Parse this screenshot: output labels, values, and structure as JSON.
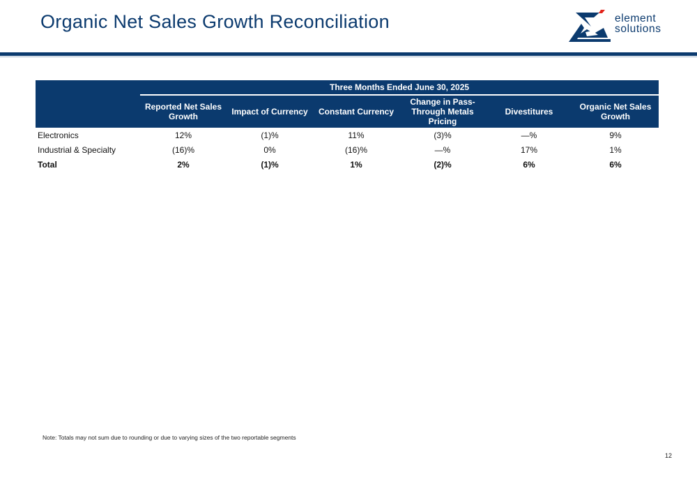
{
  "title": "Organic Net Sales Growth Reconciliation",
  "logo": {
    "line1": "element",
    "line2": "solutions"
  },
  "table": {
    "period": "Three Months Ended June 30, 2025",
    "headers": [
      "Reported Net Sales Growth",
      "Impact of  Currency",
      "Constant Currency",
      "Change in Pass-Through Metals Pricing",
      "Divestitures",
      "Organic Net Sales Growth"
    ],
    "rows": [
      {
        "label": "Electronics",
        "values": [
          "12%",
          "(1)%",
          "11%",
          "(3)%",
          "—%",
          "9%"
        ]
      },
      {
        "label": "Industrial & Specialty",
        "values": [
          "(16)%",
          "0%",
          "(16)%",
          "—%",
          "17%",
          "1%"
        ]
      },
      {
        "label": "Total",
        "values": [
          "2%",
          "(1)%",
          "1%",
          "(2)%",
          "6%",
          "6%"
        ]
      }
    ]
  },
  "note": "Note: Totals may not sum due to rounding or due to varying sizes of the two reportable segments",
  "page_number": "12",
  "colors": {
    "brand_navy": "#0b3a6e",
    "accent_red": "#e2231a"
  }
}
